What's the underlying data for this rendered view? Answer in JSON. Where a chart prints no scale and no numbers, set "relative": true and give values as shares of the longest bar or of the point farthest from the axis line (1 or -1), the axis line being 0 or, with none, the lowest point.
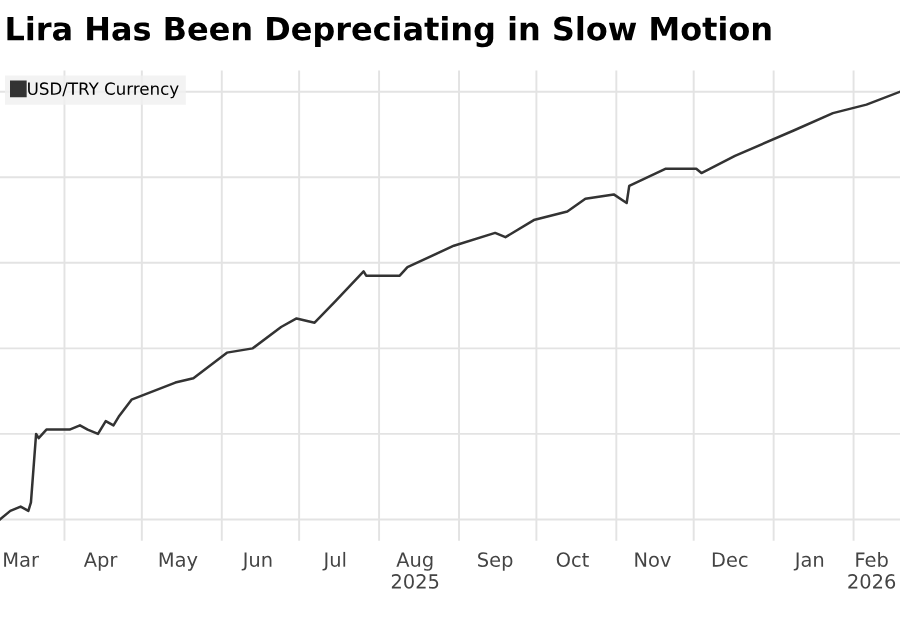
{
  "chart_data": {
    "type": "line",
    "title": "Lira Has Been Depreciating in Slow Motion",
    "relative": true,
    "series": [
      {
        "name": "USD/TRY Currency",
        "color": "#333333",
        "x": [
          "2025-03-07",
          "2025-03-11",
          "2025-03-15",
          "2025-03-18",
          "2025-03-19",
          "2025-03-21",
          "2025-03-22",
          "2025-03-25",
          "2025-03-30",
          "2025-04-03",
          "2025-04-07",
          "2025-04-10",
          "2025-04-14",
          "2025-04-17",
          "2025-04-20",
          "2025-04-22",
          "2025-04-27",
          "2025-05-14",
          "2025-05-21",
          "2025-06-03",
          "2025-06-13",
          "2025-06-24",
          "2025-06-30",
          "2025-07-07",
          "2025-07-15",
          "2025-07-26",
          "2025-07-27",
          "2025-08-09",
          "2025-08-12",
          "2025-08-30",
          "2025-09-15",
          "2025-09-19",
          "2025-09-30",
          "2025-10-13",
          "2025-10-20",
          "2025-10-31",
          "2025-11-05",
          "2025-11-06",
          "2025-11-20",
          "2025-12-02",
          "2025-12-04",
          "2025-12-17",
          "2026-01-09",
          "2026-01-24",
          "2026-02-06",
          "2026-02-19"
        ],
        "values": [
          0.0,
          0.02,
          0.03,
          0.02,
          0.04,
          0.2,
          0.19,
          0.21,
          0.21,
          0.21,
          0.22,
          0.21,
          0.2,
          0.23,
          0.22,
          0.24,
          0.28,
          0.32,
          0.33,
          0.39,
          0.4,
          0.45,
          0.47,
          0.46,
          0.51,
          0.58,
          0.57,
          0.57,
          0.59,
          0.64,
          0.67,
          0.66,
          0.7,
          0.72,
          0.75,
          0.76,
          0.74,
          0.78,
          0.82,
          0.82,
          0.81,
          0.85,
          0.91,
          0.95,
          0.97,
          1.0
        ]
      }
    ],
    "xlim": [
      "2025-03-07",
      "2026-02-19"
    ],
    "xticks": [
      {
        "value": "2025-03-15",
        "label": "Mar"
      },
      {
        "value": "2025-04-15",
        "label": "Apr"
      },
      {
        "value": "2025-05-15",
        "label": "May"
      },
      {
        "value": "2025-06-15",
        "label": "Jun"
      },
      {
        "value": "2025-07-15",
        "label": "Jul"
      },
      {
        "value": "2025-08-15",
        "label": "Aug\n2025"
      },
      {
        "value": "2025-09-15",
        "label": "Sep"
      },
      {
        "value": "2025-10-15",
        "label": "Oct"
      },
      {
        "value": "2025-11-15",
        "label": "Nov"
      },
      {
        "value": "2025-12-15",
        "label": "Dec"
      },
      {
        "value": "2026-01-15",
        "label": "Jan"
      },
      {
        "value": "2026-02-08",
        "label": "Feb\n2026"
      }
    ],
    "grid": true,
    "legend": "top left",
    "line_style": "solid",
    "marker": "none"
  }
}
